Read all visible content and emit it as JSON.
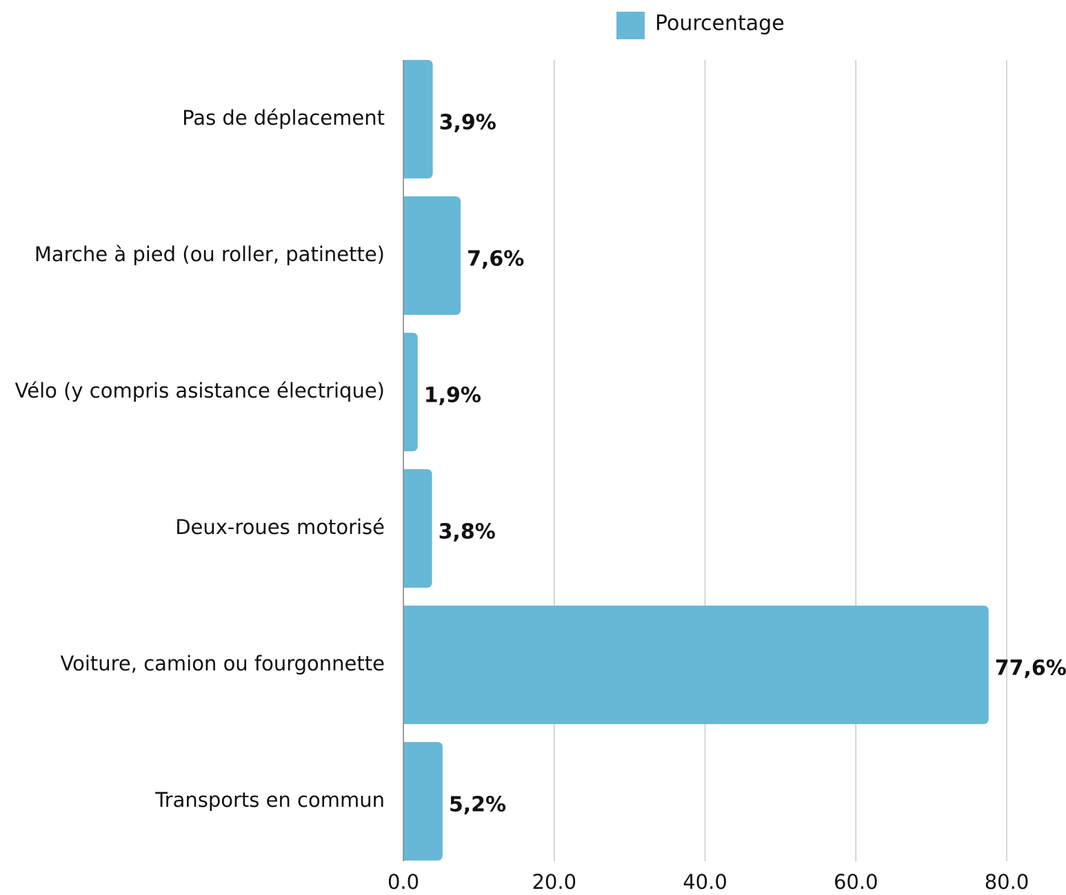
{
  "chart_data": {
    "type": "bar",
    "orientation": "horizontal",
    "categories": [
      "Pas de déplacement",
      "Marche à pied (ou roller, patinette)",
      "Vélo (y compris asistance électrique)",
      "Deux-roues motorisé",
      "Voiture, camion ou fourgonnette",
      "Transports en commun"
    ],
    "series": [
      {
        "name": "Pourcentage",
        "color": "#67b8d6",
        "values": [
          3.9,
          7.6,
          1.9,
          3.8,
          77.6,
          5.2
        ],
        "value_labels": [
          "3,9%",
          "7,6%",
          "1,9%",
          "3,8%",
          "77,6%",
          "5,2%"
        ]
      }
    ],
    "xlim": [
      0,
      80
    ],
    "xticks": [
      {
        "value": 0,
        "label": "0.0"
      },
      {
        "value": 20,
        "label": "20.0"
      },
      {
        "value": 40,
        "label": "40.0"
      },
      {
        "value": 60,
        "label": "60.0"
      },
      {
        "value": 80,
        "label": "80.0"
      }
    ],
    "grid": true,
    "legend": "top"
  }
}
